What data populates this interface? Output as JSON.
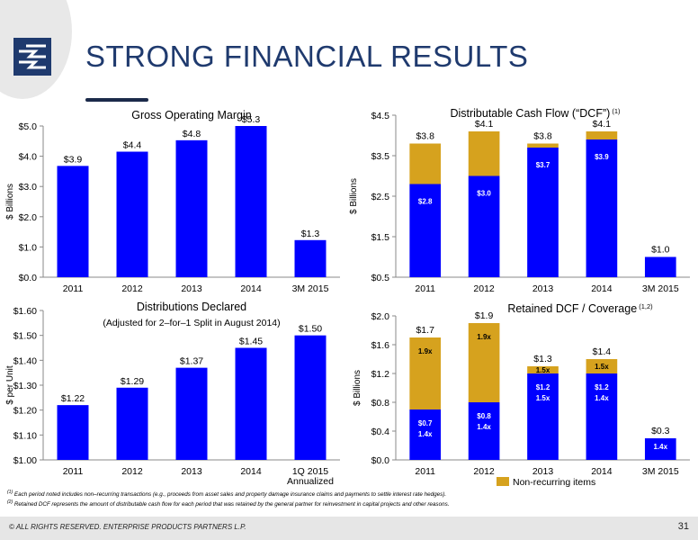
{
  "title": "STRONG FINANCIAL RESULTS",
  "colors": {
    "bar": "#0000ff",
    "nonrecurring": "#d6a21e",
    "title": "#1f3a6e"
  },
  "chart_data": [
    {
      "type": "bar",
      "title": "Gross Operating Margin",
      "ylabel": "$ Billions",
      "categories": [
        "2011",
        "2012",
        "2013",
        "2014",
        "3M 2015"
      ],
      "values": [
        3.9,
        4.4,
        4.8,
        5.3,
        1.3
      ],
      "labels": [
        "$3.9",
        "$4.4",
        "$4.8",
        "$5.3",
        "$1.3"
      ],
      "yticks": [
        "$0.0",
        "$1.0",
        "$2.0",
        "$3.0",
        "$4.0",
        "$5.0"
      ],
      "ylim": [
        0,
        5.3
      ]
    },
    {
      "type": "bar",
      "stacked": true,
      "title": "Distributable Cash Flow (“DCF”)",
      "title_sup": "(1)",
      "ylabel": "$ Billions",
      "categories": [
        "2011",
        "2012",
        "2013",
        "2014",
        "3M 2015"
      ],
      "series": [
        {
          "name": "",
          "values": [
            2.8,
            3.0,
            3.7,
            3.9,
            1.0
          ],
          "labels": [
            "$2.8",
            "$3.0",
            "$3.7",
            "$3.9",
            ""
          ]
        },
        {
          "name": "Non-recurring items",
          "values": [
            1.0,
            1.1,
            0.1,
            0.2,
            0.0
          ],
          "labels": [
            "",
            "",
            "",
            "",
            ""
          ]
        }
      ],
      "totals": [
        "$3.8",
        "$4.1",
        "$3.8",
        "$4.1",
        "$1.0"
      ],
      "yticks": [
        "$0.5",
        "$1.5",
        "$2.5",
        "$3.5",
        "$4.5"
      ],
      "ylim": [
        0.5,
        4.5
      ]
    },
    {
      "type": "bar",
      "title": "Distributions Declared",
      "subtitle": "(Adjusted for 2–for–1 Split in August 2014)",
      "ylabel": "$ per Unit",
      "categories": [
        "2011",
        "2012",
        "2013",
        "2014",
        "1Q 2015\nAnnualized"
      ],
      "category_lines": [
        [
          "2011"
        ],
        [
          "2012"
        ],
        [
          "2013"
        ],
        [
          "2014"
        ],
        [
          "1Q 2015",
          "Annualized"
        ]
      ],
      "values": [
        1.22,
        1.29,
        1.37,
        1.45,
        1.5
      ],
      "labels": [
        "$1.22",
        "$1.29",
        "$1.37",
        "$1.45",
        "$1.50"
      ],
      "yticks": [
        "$1.00",
        "$1.10",
        "$1.20",
        "$1.30",
        "$1.40",
        "$1.50",
        "$1.60"
      ],
      "ylim": [
        1.0,
        1.6
      ]
    },
    {
      "type": "bar",
      "stacked": true,
      "title": "Retained DCF / Coverage",
      "title_sup": "(1,2)",
      "ylabel": "$ Billions",
      "categories": [
        "2011",
        "2012",
        "2013",
        "2014",
        "3M 2015"
      ],
      "series": [
        {
          "name": "",
          "values": [
            0.7,
            0.8,
            1.2,
            1.2,
            0.3
          ],
          "labels": [
            "$0.7",
            "$0.8",
            "$1.2",
            "$1.2",
            ""
          ],
          "coverage": [
            "1.4x",
            "1.4x",
            "1.5x",
            "1.4x",
            "1.4x"
          ]
        },
        {
          "name": "Non-recurring items",
          "values": [
            1.0,
            1.1,
            0.1,
            0.2,
            0.0
          ],
          "coverage": [
            "1.9x",
            "1.9x",
            "1.5x",
            "1.5x",
            ""
          ]
        }
      ],
      "totals": [
        "$1.7",
        "$1.9",
        "$1.3",
        "$1.4",
        "$0.3"
      ],
      "yticks": [
        "$0.0",
        "$0.4",
        "$0.8",
        "$1.2",
        "$1.6",
        "$2.0"
      ],
      "ylim": [
        0,
        2.0
      ],
      "legend": "Non-recurring items",
      "legend_position": "bottom"
    }
  ],
  "footnotes": {
    "note1_marker": "(1)",
    "note1": "Each period noted includes non–recurring transactions (e.g., proceeds from asset sales and property damage insurance claims and payments to settle interest rate hedges).",
    "note2_marker": "(2)",
    "note2": "Retained DCF represents the amount of distributable cash flow for each period that was retained by the general partner for reinvestment in capital projects and other reasons."
  },
  "footer": {
    "copyright": "© ALL RIGHTS RESERVED. ENTERPRISE PRODUCTS PARTNERS L.P.",
    "page_number": "31"
  }
}
